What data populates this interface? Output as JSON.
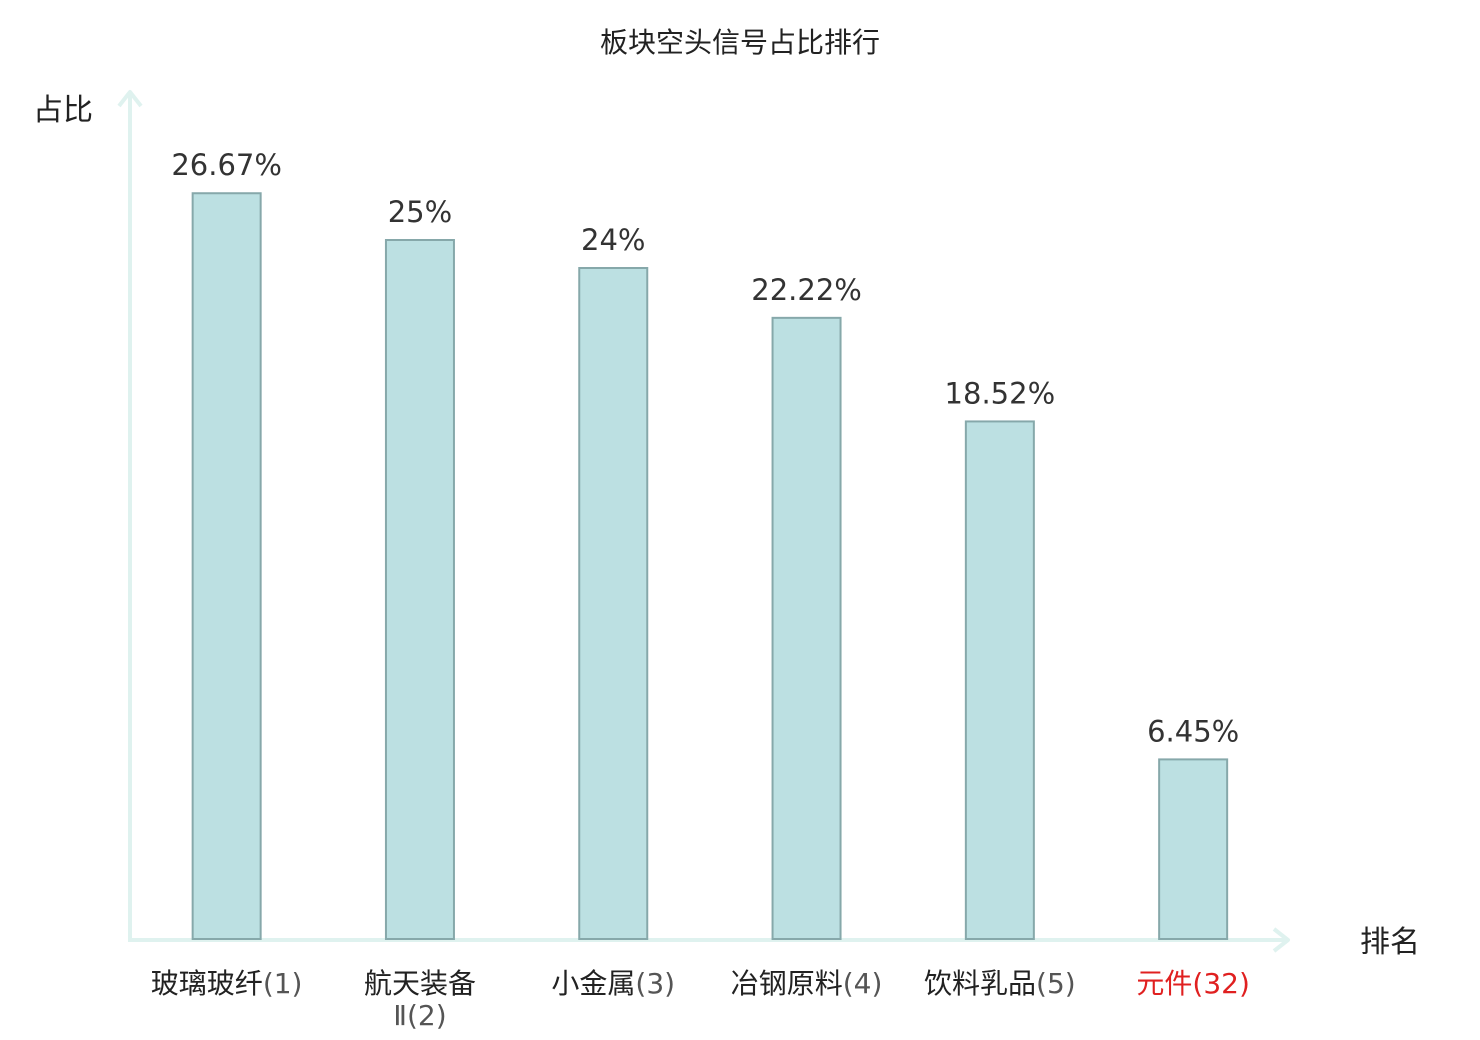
{
  "chart_data": {
    "type": "bar",
    "title": "板块空头信号占比排行",
    "ylabel": "占比",
    "xlabel": "排名",
    "ylim": [
      0,
      30
    ],
    "grid": false,
    "unit": "%",
    "categories": [
      {
        "name": "玻璃玻纤",
        "rank": "(1)",
        "value": 26.67,
        "label": "26.67%",
        "highlight": false
      },
      {
        "name": "航天装备",
        "name_line2": "Ⅱ",
        "rank": "(2)",
        "value": 25,
        "label": "25%",
        "highlight": false
      },
      {
        "name": "小金属",
        "rank": "(3)",
        "value": 24,
        "label": "24%",
        "highlight": false
      },
      {
        "name": "冶钢原料",
        "rank": "(4)",
        "value": 22.22,
        "label": "22.22%",
        "highlight": false
      },
      {
        "name": "饮料乳品",
        "rank": "(5)",
        "value": 18.52,
        "label": "18.52%",
        "highlight": false
      },
      {
        "name": "元件",
        "rank": "(32)",
        "value": 6.45,
        "label": "6.45%",
        "highlight": true
      }
    ],
    "colors": {
      "bar_fill": "#bce0e2",
      "bar_stroke": "#86a8aa",
      "axis": "#dff2ef",
      "highlight_text": "#e02020"
    }
  }
}
